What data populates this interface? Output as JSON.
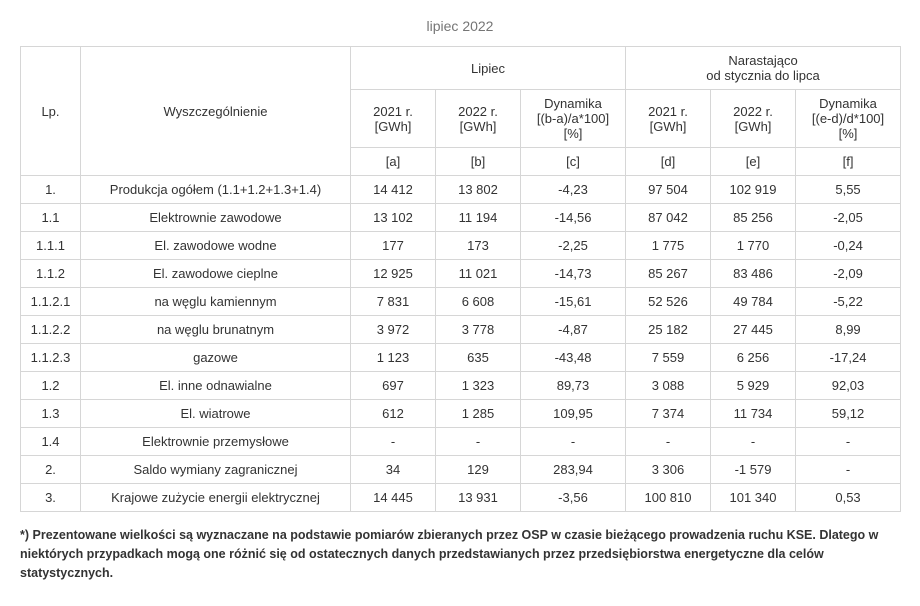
{
  "title": "lipiec 2022",
  "header": {
    "lp": "Lp.",
    "desc": "Wyszczególnienie",
    "group1": "Lipiec",
    "group2": "Narastająco\nod stycznia do lipca",
    "y2021": "2021 r.\n[GWh]",
    "y2022": "2022 r.\n[GWh]",
    "dyn1": "Dynamika\n[(b-a)/a*100]\n[%]",
    "dyn2": "Dynamika\n[(e-d)/d*100]\n[%]",
    "letters": {
      "a": "[a]",
      "b": "[b]",
      "c": "[c]",
      "d": "[d]",
      "e": "[e]",
      "f": "[f]"
    }
  },
  "rows": [
    {
      "lp": "1.",
      "desc": "Produkcja ogółem (1.1+1.2+1.3+1.4)",
      "a": "14 412",
      "b": "13 802",
      "c": "-4,23",
      "d": "97 504",
      "e": "102 919",
      "f": "5,55"
    },
    {
      "lp": "1.1",
      "desc": "Elektrownie zawodowe",
      "a": "13 102",
      "b": "11 194",
      "c": "-14,56",
      "d": "87 042",
      "e": "85 256",
      "f": "-2,05"
    },
    {
      "lp": "1.1.1",
      "desc": "El. zawodowe wodne",
      "a": "177",
      "b": "173",
      "c": "-2,25",
      "d": "1 775",
      "e": "1 770",
      "f": "-0,24"
    },
    {
      "lp": "1.1.2",
      "desc": "El. zawodowe cieplne",
      "a": "12 925",
      "b": "11 021",
      "c": "-14,73",
      "d": "85 267",
      "e": "83 486",
      "f": "-2,09"
    },
    {
      "lp": "1.1.2.1",
      "desc": "na węglu kamiennym",
      "a": "7 831",
      "b": "6 608",
      "c": "-15,61",
      "d": "52 526",
      "e": "49 784",
      "f": "-5,22"
    },
    {
      "lp": "1.1.2.2",
      "desc": "na węglu brunatnym",
      "a": "3 972",
      "b": "3 778",
      "c": "-4,87",
      "d": "25 182",
      "e": "27 445",
      "f": "8,99"
    },
    {
      "lp": "1.1.2.3",
      "desc": "gazowe",
      "a": "1 123",
      "b": "635",
      "c": "-43,48",
      "d": "7 559",
      "e": "6 256",
      "f": "-17,24"
    },
    {
      "lp": "1.2",
      "desc": "El. inne odnawialne",
      "a": "697",
      "b": "1 323",
      "c": "89,73",
      "d": "3 088",
      "e": "5 929",
      "f": "92,03"
    },
    {
      "lp": "1.3",
      "desc": "El. wiatrowe",
      "a": "612",
      "b": "1 285",
      "c": "109,95",
      "d": "7 374",
      "e": "11 734",
      "f": "59,12"
    },
    {
      "lp": "1.4",
      "desc": "Elektrownie przemysłowe",
      "a": "-",
      "b": "-",
      "c": "-",
      "d": "-",
      "e": "-",
      "f": "-"
    },
    {
      "lp": "2.",
      "desc": "Saldo wymiany zagranicznej",
      "a": "34",
      "b": "129",
      "c": "283,94",
      "d": "3 306",
      "e": "-1 579",
      "f": "-"
    },
    {
      "lp": "3.",
      "desc": "Krajowe zużycie energii elektrycznej",
      "a": "14 445",
      "b": "13 931",
      "c": "-3,56",
      "d": "100 810",
      "e": "101 340",
      "f": "0,53"
    }
  ],
  "footnote": "*) Prezentowane wielkości są wyznaczane na podstawie pomiarów zbieranych przez OSP w czasie bieżącego prowadzenia ruchu KSE. Dlatego w niektórych przypadkach mogą one różnić się od ostatecznych danych przedstawianych przez przedsiębiorstwa energetyczne dla celów statystycznych."
}
